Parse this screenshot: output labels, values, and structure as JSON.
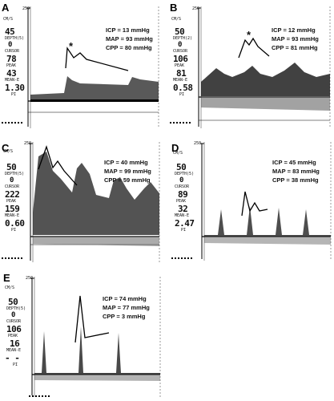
{
  "panels": [
    {
      "label": "A",
      "scale_top": "250",
      "unit": "CM/S",
      "depth_value": "45",
      "depth_label": "DEPTH(5)",
      "cursor_value": "0",
      "cursor_label": "CURSOR",
      "peak_value": "78",
      "peak_label": "PEAK",
      "mean_value": "43",
      "mean_label": "MEAN-E",
      "pi_value": "1.30",
      "pi_label": "PI",
      "icp": "ICP = 13 mmHg",
      "map": "MAP = 93 mmHg",
      "cpp": "CPP = 80 mmHg",
      "asterisk": "*"
    },
    {
      "label": "B",
      "scale_top": "250",
      "unit": "CM/S",
      "depth_value": "50",
      "depth_label": "DEPTH(2)",
      "cursor_value": "0",
      "cursor_label": "CURSOR",
      "peak_value": "106",
      "peak_label": "PEAK",
      "mean_value": "81",
      "mean_label": "MEAN-E",
      "pi_value": "0.58",
      "pi_label": "PI",
      "icp": "ICP = 12 mmHg",
      "map": "MAP = 93 mmHg",
      "cpp": "CPP = 81 mmHg",
      "asterisk": "*"
    },
    {
      "label": "C",
      "scale_top": "250",
      "unit": "CM/S",
      "depth_value": "50",
      "depth_label": "DEPTH(5)",
      "cursor_value": "0",
      "cursor_label": "CURSOR",
      "peak_value": "222",
      "peak_label": "PEAK",
      "mean_value": "159",
      "mean_label": "MEAN-E",
      "pi_value": "0.60",
      "pi_label": "PI",
      "icp": "ICP = 40 mmHg",
      "map": "MAP = 99 mmHg",
      "cpp": "CPP = 59 mmHg",
      "asterisk": ""
    },
    {
      "label": "D",
      "scale_top": "250",
      "unit": "CM/S",
      "depth_value": "50",
      "depth_label": "DEPTH(5)",
      "cursor_value": "0",
      "cursor_label": "CURSOR",
      "peak_value": "89",
      "peak_label": "PEAK",
      "mean_value": "32",
      "mean_label": "MEAN-E",
      "pi_value": "2.47",
      "pi_label": "PI",
      "icp": "ICP = 45 mmHg",
      "map": "MAP = 83 mmHg",
      "cpp": "CPP = 38 mmHg",
      "asterisk": ""
    },
    {
      "label": "E",
      "scale_top": "250",
      "unit": "CM/S",
      "depth_value": "50",
      "depth_label": "DEPTH(5)",
      "cursor_value": "0",
      "cursor_label": "CURSOR",
      "peak_value": "106",
      "peak_label": "PEAK",
      "mean_value": "16",
      "mean_label": "MEAN-E",
      "pi_value": "- -",
      "pi_label": "PI",
      "icp": "ICP = 74 mmHg",
      "map": "MAP = 77 mmHg",
      "cpp": "CPP = 3 mmHg",
      "asterisk": ""
    }
  ]
}
